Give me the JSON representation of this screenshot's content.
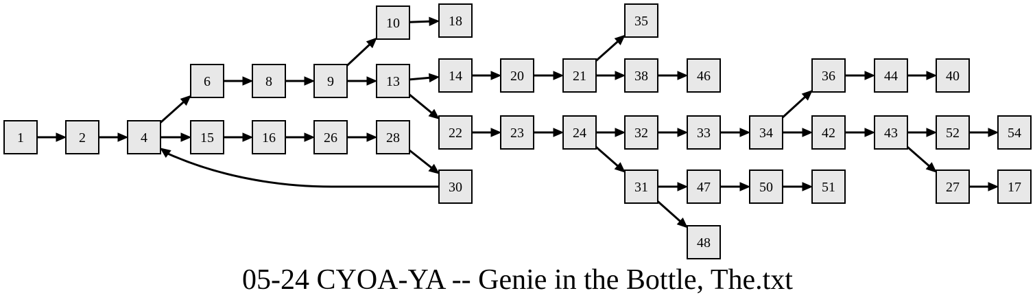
{
  "caption": "05-24 CYOA-YA -- Genie in the Bottle, The.txt",
  "colors": {
    "node_fill": "#e8e8e8",
    "stroke": "#000000",
    "background": "#ffffff"
  },
  "nodes": [
    {
      "id": "1",
      "label": "1"
    },
    {
      "id": "2",
      "label": "2"
    },
    {
      "id": "4",
      "label": "4"
    },
    {
      "id": "6",
      "label": "6"
    },
    {
      "id": "8",
      "label": "8"
    },
    {
      "id": "9",
      "label": "9"
    },
    {
      "id": "10",
      "label": "10"
    },
    {
      "id": "18",
      "label": "18"
    },
    {
      "id": "13",
      "label": "13"
    },
    {
      "id": "14",
      "label": "14"
    },
    {
      "id": "20",
      "label": "20"
    },
    {
      "id": "21",
      "label": "21"
    },
    {
      "id": "35",
      "label": "35"
    },
    {
      "id": "38",
      "label": "38"
    },
    {
      "id": "46",
      "label": "46"
    },
    {
      "id": "22",
      "label": "22"
    },
    {
      "id": "23",
      "label": "23"
    },
    {
      "id": "24",
      "label": "24"
    },
    {
      "id": "32",
      "label": "32"
    },
    {
      "id": "33",
      "label": "33"
    },
    {
      "id": "34",
      "label": "34"
    },
    {
      "id": "36",
      "label": "36"
    },
    {
      "id": "44",
      "label": "44"
    },
    {
      "id": "40",
      "label": "40"
    },
    {
      "id": "42",
      "label": "42"
    },
    {
      "id": "43",
      "label": "43"
    },
    {
      "id": "52",
      "label": "52"
    },
    {
      "id": "54",
      "label": "54"
    },
    {
      "id": "27",
      "label": "27"
    },
    {
      "id": "17",
      "label": "17"
    },
    {
      "id": "31",
      "label": "31"
    },
    {
      "id": "47",
      "label": "47"
    },
    {
      "id": "50",
      "label": "50"
    },
    {
      "id": "51",
      "label": "51"
    },
    {
      "id": "48",
      "label": "48"
    },
    {
      "id": "15",
      "label": "15"
    },
    {
      "id": "16",
      "label": "16"
    },
    {
      "id": "26",
      "label": "26"
    },
    {
      "id": "28",
      "label": "28"
    },
    {
      "id": "30",
      "label": "30"
    }
  ],
  "edges": [
    [
      "1",
      "2"
    ],
    [
      "2",
      "4"
    ],
    [
      "4",
      "6"
    ],
    [
      "4",
      "15"
    ],
    [
      "6",
      "8"
    ],
    [
      "8",
      "9"
    ],
    [
      "9",
      "10"
    ],
    [
      "9",
      "13"
    ],
    [
      "10",
      "18"
    ],
    [
      "13",
      "14"
    ],
    [
      "13",
      "22"
    ],
    [
      "14",
      "20"
    ],
    [
      "20",
      "21"
    ],
    [
      "21",
      "35"
    ],
    [
      "21",
      "38"
    ],
    [
      "38",
      "46"
    ],
    [
      "22",
      "23"
    ],
    [
      "23",
      "24"
    ],
    [
      "24",
      "32"
    ],
    [
      "24",
      "31"
    ],
    [
      "32",
      "33"
    ],
    [
      "33",
      "34"
    ],
    [
      "34",
      "36"
    ],
    [
      "34",
      "42"
    ],
    [
      "36",
      "44"
    ],
    [
      "44",
      "40"
    ],
    [
      "42",
      "43"
    ],
    [
      "43",
      "52"
    ],
    [
      "43",
      "27"
    ],
    [
      "52",
      "54"
    ],
    [
      "27",
      "17"
    ],
    [
      "31",
      "47"
    ],
    [
      "31",
      "48"
    ],
    [
      "47",
      "50"
    ],
    [
      "50",
      "51"
    ],
    [
      "15",
      "16"
    ],
    [
      "16",
      "26"
    ],
    [
      "26",
      "28"
    ],
    [
      "28",
      "30"
    ],
    [
      "30",
      "4"
    ]
  ]
}
